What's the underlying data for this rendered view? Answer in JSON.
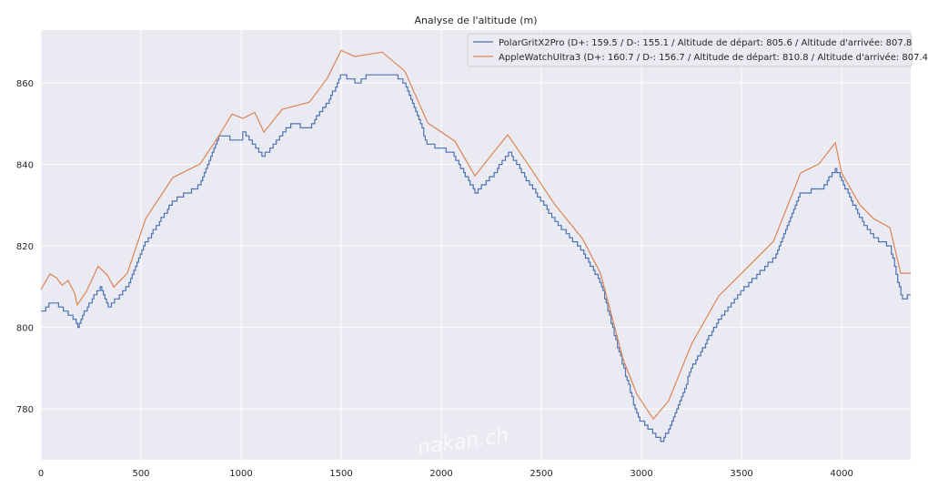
{
  "chart_data": {
    "type": "line",
    "title": "Analyse de l'altitude (m)",
    "xlabel": "",
    "ylabel": "",
    "xlim": [
      0,
      4345
    ],
    "ylim": [
      767.5,
      873
    ],
    "xticks": [
      0,
      500,
      1000,
      1500,
      2000,
      2500,
      3000,
      3500,
      4000
    ],
    "yticks": [
      780,
      800,
      820,
      840,
      860
    ],
    "grid": true,
    "legend_position": "top-right",
    "watermark": "nakan.ch",
    "series": [
      {
        "name": "PolarGritX2Pro (D+: 159.5 / D-: 155.1 / Altitude de départ: 805.6 / Altitude d'arrivée: 807.8",
        "color": "#4c72b0",
        "style": "step",
        "x": [
          0,
          60,
          100,
          170,
          182,
          230,
          295,
          340,
          430,
          520,
          660,
          795,
          886,
          1000,
          1010,
          1110,
          1250,
          1340,
          1440,
          1500,
          1590,
          1630,
          1770,
          1820,
          1930,
          2050,
          2170,
          2250,
          2340,
          2430,
          2570,
          2700,
          2795,
          2910,
          2980,
          3060,
          3100,
          3140,
          3250,
          3386,
          3520,
          3660,
          3795,
          3900,
          3970,
          4000,
          4090,
          4160,
          4240,
          4300,
          4345
        ],
        "y": [
          803.5,
          806.5,
          805,
          802,
          800,
          805,
          810,
          805,
          810,
          820.5,
          831,
          835,
          847,
          846,
          848,
          842,
          850,
          849,
          856,
          862,
          860,
          862,
          862,
          860,
          845,
          843,
          833,
          837,
          843,
          836,
          826,
          819,
          811,
          790,
          778,
          774,
          772,
          775,
          790,
          802,
          810,
          817,
          833,
          834,
          839,
          836,
          827,
          822,
          820,
          807,
          808
        ]
      },
      {
        "name": "AppleWatchUltra3 (D+: 160.7 / D-: 156.7 / Altitude de départ: 810.8 / Altitude d'arrivée: 807.4",
        "color": "#dd8452",
        "style": "line",
        "x": [
          0,
          45,
          77,
          105,
          136,
          168,
          182,
          227,
          286,
          332,
          364,
          432,
          523,
          659,
          795,
          886,
          955,
          1009,
          1068,
          1114,
          1205,
          1341,
          1432,
          1500,
          1568,
          1705,
          1818,
          1932,
          2068,
          2168,
          2250,
          2332,
          2432,
          2568,
          2705,
          2795,
          2909,
          2977,
          3059,
          3136,
          3250,
          3386,
          3523,
          3659,
          3795,
          3886,
          3968,
          4000,
          4091,
          4159,
          4241,
          4295,
          4345
        ],
        "y": [
          809.3,
          813.1,
          812.2,
          810.4,
          811.5,
          808.4,
          805.5,
          808.8,
          815,
          812.8,
          809.9,
          813.3,
          826.7,
          836.8,
          840.1,
          846.8,
          852.4,
          851.3,
          852.8,
          847.9,
          853.5,
          855.3,
          861.3,
          868,
          866.5,
          867.6,
          862.9,
          850.2,
          845.7,
          837.2,
          842.3,
          847.3,
          840.1,
          830.1,
          821.8,
          813.3,
          792.1,
          783.6,
          777.5,
          782,
          795.9,
          807.7,
          814.4,
          821.1,
          837.9,
          840.1,
          845.3,
          837.9,
          830.1,
          826.7,
          824.5,
          813.3,
          813.3
        ]
      }
    ]
  }
}
